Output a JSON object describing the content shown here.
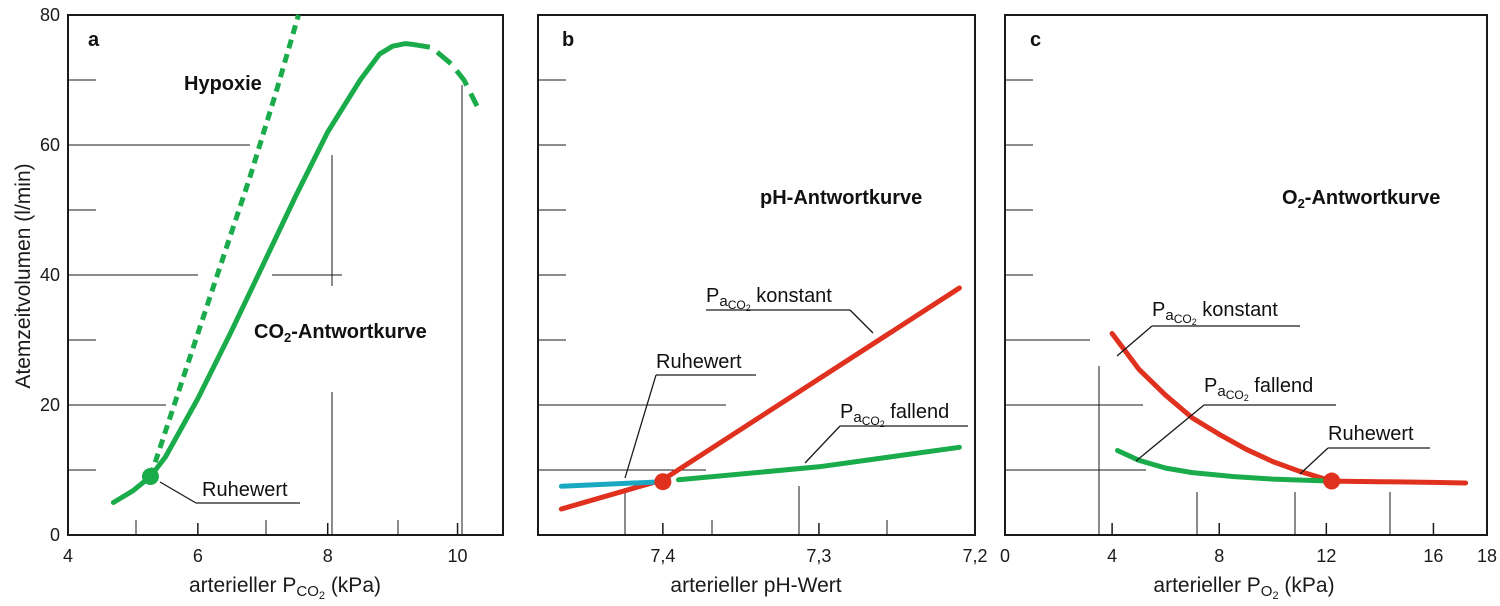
{
  "y_axis_label": "Atemzeitvolumen (l/min)",
  "colors": {
    "green": "#1aab4b",
    "red": "#e0301e",
    "cyan": "#19a8c2",
    "axis": "#1a1a1a"
  },
  "chart_data": [
    {
      "type": "line",
      "letter": "a",
      "xlabel": "arterieller P",
      "xlabel_sub": "CO",
      "xlabel_subsub": "2",
      "xlabel_tail": " (kPa)",
      "xlim": [
        4,
        10.7
      ],
      "ylim": [
        0,
        80
      ],
      "xticks": [
        "4",
        "6",
        "8",
        "10"
      ],
      "xtick_values": [
        4,
        6,
        8,
        10
      ],
      "yticks": [
        "0",
        "20",
        "40",
        "60",
        "80"
      ],
      "ytick_values": [
        0,
        20,
        40,
        60,
        80
      ],
      "series": [
        {
          "name": "CO2-Antwortkurve",
          "color": "green",
          "style": "solid",
          "x": [
            4.7,
            5.0,
            5.27,
            5.5,
            6.0,
            6.5,
            7.0,
            7.5,
            8.0,
            8.5,
            8.8,
            9.0,
            9.2,
            9.3
          ],
          "y": [
            5.0,
            6.8,
            9.0,
            12.0,
            21.0,
            31.0,
            41.5,
            52.0,
            62.0,
            70.0,
            74.0,
            75.2,
            75.6,
            75.5
          ]
        },
        {
          "name": "",
          "color": "green",
          "style": "dashed",
          "x": [
            9.3,
            9.6,
            9.9,
            10.1,
            10.3
          ],
          "y": [
            75.5,
            75.0,
            72.5,
            70.0,
            66.0
          ]
        },
        {
          "name": "Hypoxie",
          "color": "green",
          "style": "dotted",
          "x": [
            5.27,
            5.8,
            6.3,
            6.8,
            7.2,
            7.55
          ],
          "y": [
            9.0,
            25.0,
            40.0,
            55.0,
            68.0,
            80.0
          ]
        }
      ],
      "points": [
        {
          "label": "Ruhewert",
          "x": 5.27,
          "y": 9.0,
          "color": "green"
        }
      ],
      "labels": {
        "hypoxie": "Hypoxie",
        "co2_pre": "CO",
        "co2_sub": "2",
        "co2_post": "-Antwortkurve",
        "ruhewert": "Ruhewert"
      }
    },
    {
      "type": "line",
      "letter": "b",
      "xlabel": "arterieller pH-Wert",
      "xlim": [
        7.48,
        7.2
      ],
      "ylim": [
        0,
        80
      ],
      "xticks": [
        "7,4",
        "7,3",
        "7,2"
      ],
      "xtick_values": [
        7.4,
        7.3,
        7.2
      ],
      "series": [
        {
          "name": "PaCO2 konstant",
          "color": "red",
          "style": "solid",
          "x": [
            7.465,
            7.4,
            7.21
          ],
          "y": [
            4.0,
            8.5,
            38.0
          ]
        },
        {
          "name": "PaCO2 fallend",
          "color": "green",
          "style": "solid",
          "x": [
            7.39,
            7.3,
            7.21
          ],
          "y": [
            8.5,
            10.5,
            13.5
          ]
        },
        {
          "name": "",
          "color": "cyan",
          "style": "solid",
          "x": [
            7.465,
            7.4
          ],
          "y": [
            7.5,
            8.2
          ]
        }
      ],
      "points": [
        {
          "label": "Ruhewert",
          "x": 7.4,
          "y": 8.2,
          "color": "red"
        }
      ],
      "labels": {
        "title": "pH-Antwortkurve",
        "ruhewert": "Ruhewert",
        "p_konstant": "P",
        "a_sub": "a",
        "co_sub": "CO",
        "two_sub": "2",
        "konstant": " konstant",
        "fallend": " fallend"
      }
    },
    {
      "type": "line",
      "letter": "c",
      "xlabel": "arterieller P",
      "xlabel_sub": "O",
      "xlabel_subsub": "2",
      "xlabel_tail": " (kPa)",
      "xlim": [
        0,
        18
      ],
      "ylim": [
        0,
        80
      ],
      "xticks": [
        "0",
        "4",
        "8",
        "12",
        "16",
        "18"
      ],
      "xtick_values": [
        0,
        4,
        8,
        12,
        16,
        18
      ],
      "series": [
        {
          "name": "PaCO2 konstant",
          "color": "red",
          "style": "solid",
          "x": [
            4.0,
            5.0,
            6.0,
            7.0,
            8.0,
            9.0,
            10.0,
            11.0,
            12.2,
            14.0,
            16.0,
            17.2
          ],
          "y": [
            31.0,
            25.5,
            21.5,
            18.0,
            15.5,
            13.2,
            11.3,
            9.8,
            8.3,
            8.2,
            8.1,
            8.0
          ]
        },
        {
          "name": "PaCO2 fallend",
          "color": "green",
          "style": "solid",
          "x": [
            4.2,
            5.0,
            6.0,
            7.0,
            8.5,
            10.0,
            12.2
          ],
          "y": [
            13.0,
            11.5,
            10.3,
            9.6,
            9.0,
            8.6,
            8.3
          ]
        }
      ],
      "points": [
        {
          "label": "Ruhewert",
          "x": 12.2,
          "y": 8.3,
          "color": "red"
        }
      ],
      "labels": {
        "title_pre": "O",
        "title_sub": "2",
        "title_post": "-Antwortkurve",
        "ruhewert": "Ruhewert",
        "p_konstant": "P",
        "a_sub": "a",
        "co_sub": "CO",
        "two_sub": "2",
        "konstant": " konstant",
        "fallend": " fallend"
      }
    }
  ]
}
